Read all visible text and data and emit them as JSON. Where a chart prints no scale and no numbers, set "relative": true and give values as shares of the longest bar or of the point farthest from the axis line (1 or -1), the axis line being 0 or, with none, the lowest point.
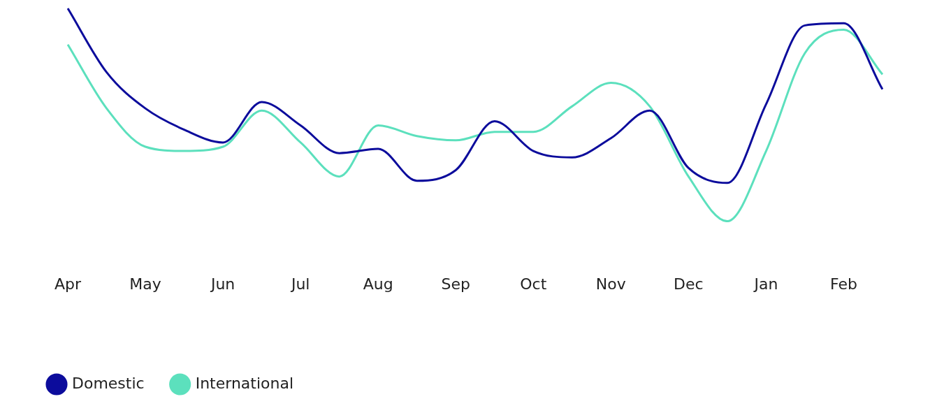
{
  "chart_data": {
    "type": "line",
    "relative": true,
    "categories": [
      "Apr",
      null,
      "May",
      null,
      "Jun",
      null,
      "Jul",
      null,
      "Aug",
      null,
      "Sep",
      null,
      "Oct",
      null,
      "Nov",
      null,
      "Dec",
      null,
      "Jan",
      null,
      "Feb",
      null
    ],
    "grid": false,
    "legend": "bottom left",
    "marker": "none",
    "line_style": "solid",
    "series": [
      {
        "name": "Domestic",
        "color": "#0c0c9c",
        "values": [
          1,
          0.7,
          0.53,
          0.43,
          0.37,
          0.56,
          0.45,
          0.32,
          0.34,
          0.19,
          0.24,
          0.47,
          0.33,
          0.3,
          0.39,
          0.52,
          0.25,
          0.18,
          0.55,
          0.92,
          0.93,
          0.62
        ]
      },
      {
        "name": "International",
        "color": "#5ce0bd",
        "values": [
          0.83,
          0.53,
          0.35,
          0.33,
          0.35,
          0.52,
          0.37,
          0.21,
          0.45,
          0.4,
          0.38,
          0.42,
          0.42,
          0.54,
          0.65,
          0.54,
          0.21,
          0,
          0.33,
          0.79,
          0.9,
          0.69
        ]
      }
    ]
  }
}
